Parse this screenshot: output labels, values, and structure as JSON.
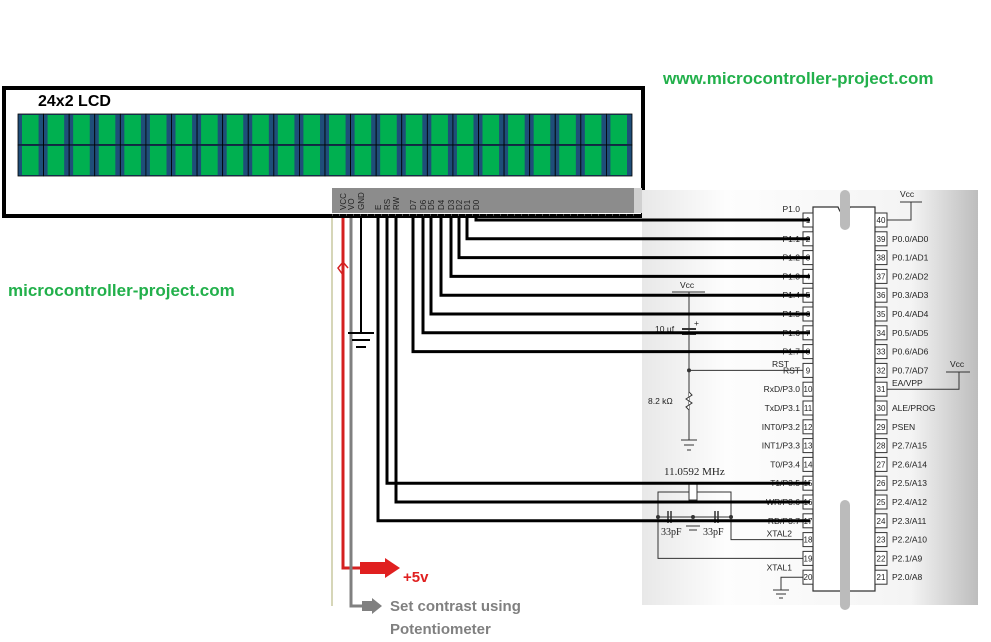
{
  "watermarks": {
    "top_right": "www.microcontroller-project.com",
    "left": "microcontroller-project.com"
  },
  "lcd": {
    "title": "24x2 LCD",
    "columns": 24,
    "rows": 2,
    "pins": [
      "VCC",
      "VO",
      "GND",
      "E",
      "RS",
      "RW",
      "D7",
      "D6",
      "D5",
      "D4",
      "D3",
      "D2",
      "D1",
      "D0"
    ],
    "cell_color": "#00b050",
    "stripe_color": "#1f4e79"
  },
  "annotations": {
    "supply": "+5v",
    "contrast_line1": "Set contrast using",
    "contrast_line2": "Potentiometer",
    "supply_color": "#e02020",
    "contrast_color": "#808080"
  },
  "mcu": {
    "left_pins": [
      {
        "num": "1",
        "label": "P1.0"
      },
      {
        "num": "2",
        "label": "P1.1"
      },
      {
        "num": "3",
        "label": "P1.2"
      },
      {
        "num": "4",
        "label": "P1.3"
      },
      {
        "num": "5",
        "label": "P1.4"
      },
      {
        "num": "6",
        "label": "P1.5"
      },
      {
        "num": "7",
        "label": "P1.6"
      },
      {
        "num": "8",
        "label": "P1.7"
      },
      {
        "num": "9",
        "label": "RST"
      },
      {
        "num": "10",
        "label": "RxD/P3.0"
      },
      {
        "num": "11",
        "label": "TxD/P3.1"
      },
      {
        "num": "12",
        "label": "INT0/P3.2"
      },
      {
        "num": "13",
        "label": "INT1/P3.3"
      },
      {
        "num": "14",
        "label": "T0/P3.4"
      },
      {
        "num": "15",
        "label": "T1/P3.5"
      },
      {
        "num": "16",
        "label": "WR/P3.6"
      },
      {
        "num": "17",
        "label": "RD/P3.7"
      },
      {
        "num": "18",
        "label": "XTAL2"
      },
      {
        "num": "19",
        "label": "XTAL1"
      },
      {
        "num": "20",
        "label": ""
      }
    ],
    "right_pins": [
      {
        "num": "40",
        "label": ""
      },
      {
        "num": "39",
        "label": "P0.0/AD0"
      },
      {
        "num": "38",
        "label": "P0.1/AD1"
      },
      {
        "num": "37",
        "label": "P0.2/AD2"
      },
      {
        "num": "36",
        "label": "P0.3/AD3"
      },
      {
        "num": "35",
        "label": "P0.4/AD4"
      },
      {
        "num": "34",
        "label": "P0.5/AD5"
      },
      {
        "num": "33",
        "label": "P0.6/AD6"
      },
      {
        "num": "32",
        "label": "P0.7/AD7"
      },
      {
        "num": "31",
        "label": "EA/VPP"
      },
      {
        "num": "30",
        "label": "ALE/PROG"
      },
      {
        "num": "29",
        "label": "PSEN"
      },
      {
        "num": "28",
        "label": "P2.7/A15"
      },
      {
        "num": "27",
        "label": "P2.6/A14"
      },
      {
        "num": "26",
        "label": "P2.5/A13"
      },
      {
        "num": "25",
        "label": "P2.4/A12"
      },
      {
        "num": "24",
        "label": "P2.3/A11"
      },
      {
        "num": "23",
        "label": "P2.2/A10"
      },
      {
        "num": "22",
        "label": "P2.1/A9"
      },
      {
        "num": "21",
        "label": "P2.0/A8"
      }
    ],
    "vcc_label": "Vcc",
    "capacitor": "10 µf",
    "cap_plus": "+",
    "resistor": "8.2 kΩ",
    "crystal": "11.0592 MHz",
    "crystal_cap": "33pF"
  }
}
